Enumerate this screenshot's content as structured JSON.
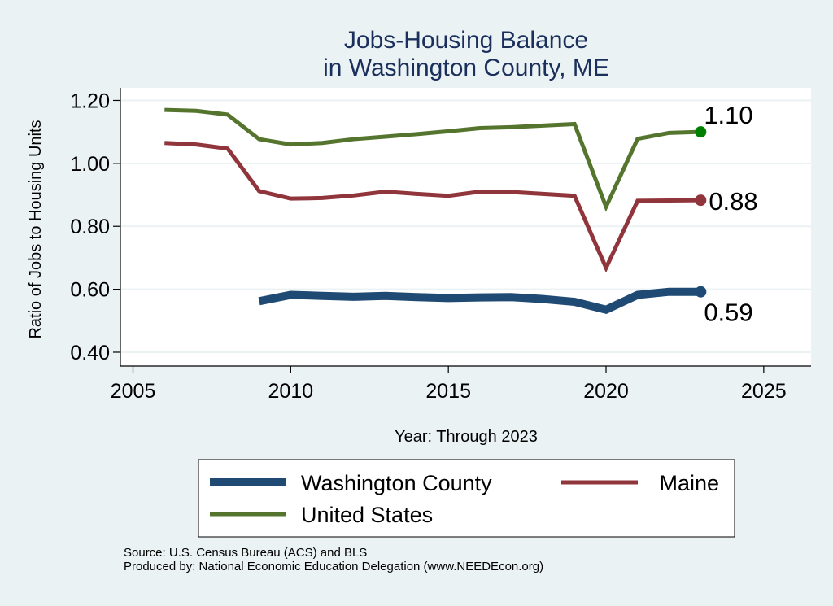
{
  "chart_data": {
    "type": "line",
    "title": "Jobs-Housing Balance",
    "subtitle": "in Washington County, ME",
    "xlabel": "Year: Through 2023",
    "ylabel": "Ratio of Jobs to Housing Units",
    "xlim": [
      2004.6,
      2026.5
    ],
    "ylim": [
      0.356,
      1.24
    ],
    "xticks": [
      2005,
      2010,
      2015,
      2020,
      2025
    ],
    "yticks": [
      "0.40",
      "0.60",
      "0.80",
      "1.00",
      "1.20"
    ],
    "ytick_values": [
      0.4,
      0.6,
      0.8,
      1.0,
      1.2
    ],
    "grid": true,
    "legend_placement": "bottom",
    "series": [
      {
        "name": "Washington County",
        "color": "#1f4a73",
        "x": [
          2009,
          2010,
          2011,
          2012,
          2013,
          2014,
          2015,
          2016,
          2017,
          2018,
          2019,
          2020,
          2021,
          2022,
          2023
        ],
        "values": [
          0.562,
          0.582,
          0.579,
          0.576,
          0.579,
          0.575,
          0.572,
          0.574,
          0.575,
          0.569,
          0.56,
          0.535,
          0.582,
          0.592,
          0.592
        ],
        "end_label": "0.59",
        "end_marker_color": "#1f4a73"
      },
      {
        "name": "Maine",
        "color": "#90353b",
        "x": [
          2006,
          2007,
          2008,
          2009,
          2010,
          2011,
          2012,
          2013,
          2014,
          2015,
          2016,
          2017,
          2018,
          2019,
          2020,
          2021,
          2022,
          2023
        ],
        "values": [
          1.065,
          1.06,
          1.047,
          0.912,
          0.888,
          0.89,
          0.898,
          0.91,
          0.903,
          0.897,
          0.91,
          0.909,
          0.903,
          0.897,
          0.668,
          0.881,
          0.882,
          0.883
        ],
        "end_label": "0.88",
        "end_marker_color": "#90353b"
      },
      {
        "name": "United States",
        "color": "#55752f",
        "x": [
          2006,
          2007,
          2008,
          2009,
          2010,
          2011,
          2012,
          2013,
          2014,
          2015,
          2016,
          2017,
          2018,
          2019,
          2020,
          2021,
          2022,
          2023
        ],
        "values": [
          1.17,
          1.167,
          1.155,
          1.077,
          1.06,
          1.065,
          1.077,
          1.085,
          1.093,
          1.102,
          1.112,
          1.115,
          1.12,
          1.125,
          0.862,
          1.078,
          1.097,
          1.1
        ],
        "end_label": "1.10",
        "end_marker_color": "#008000"
      }
    ]
  },
  "notes": {
    "source": "Source: U.S. Census Bureau (ACS) and BLS",
    "produced": "Produced by: National Economic Education Delegation (www.NEEDEcon.org)"
  }
}
